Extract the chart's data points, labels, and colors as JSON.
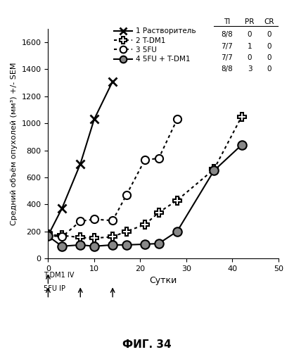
{
  "title": "ФИГ. 34",
  "ylabel": "Средний объём опухолей (мм³) +/- SEM",
  "xlabel": "Сутки",
  "xlim": [
    0,
    50
  ],
  "ylim": [
    0,
    1700
  ],
  "yticks": [
    0,
    200,
    400,
    600,
    800,
    1000,
    1200,
    1400,
    1600
  ],
  "xticks": [
    0,
    10,
    20,
    30,
    40,
    50
  ],
  "series1_x": [
    0,
    3,
    7,
    10,
    14
  ],
  "series1_y": [
    170,
    370,
    700,
    1030,
    1310
  ],
  "series2_x": [
    0,
    3,
    7,
    10,
    14,
    17,
    21,
    24,
    28,
    36,
    42
  ],
  "series2_y": [
    175,
    170,
    155,
    150,
    160,
    200,
    250,
    340,
    430,
    660,
    1050
  ],
  "series3_x": [
    0,
    3,
    7,
    10,
    14,
    17,
    21,
    24,
    28
  ],
  "series3_y": [
    170,
    160,
    275,
    290,
    280,
    470,
    730,
    740,
    1030
  ],
  "series4_x": [
    0,
    3,
    7,
    10,
    14,
    17,
    21,
    24,
    28,
    36,
    42
  ],
  "series4_y": [
    165,
    90,
    100,
    90,
    100,
    100,
    105,
    110,
    200,
    650,
    840
  ],
  "tdm1_arrow_days": [
    0
  ],
  "fu_arrow_days": [
    0,
    7,
    14
  ],
  "legend_labels": [
    "1 Растворитель",
    "2 T-DM1",
    "3 5FU",
    "4 5FU + T-DM1"
  ],
  "ti_vals": [
    "8/8",
    "7/7",
    "7/7",
    "8/8"
  ],
  "pr_vals": [
    "0",
    "1",
    "0",
    "3"
  ],
  "cr_vals": [
    "0",
    "0",
    "0",
    "0"
  ],
  "label_tdm1": "T-DM1 IV",
  "label_fu": "5FU IP"
}
